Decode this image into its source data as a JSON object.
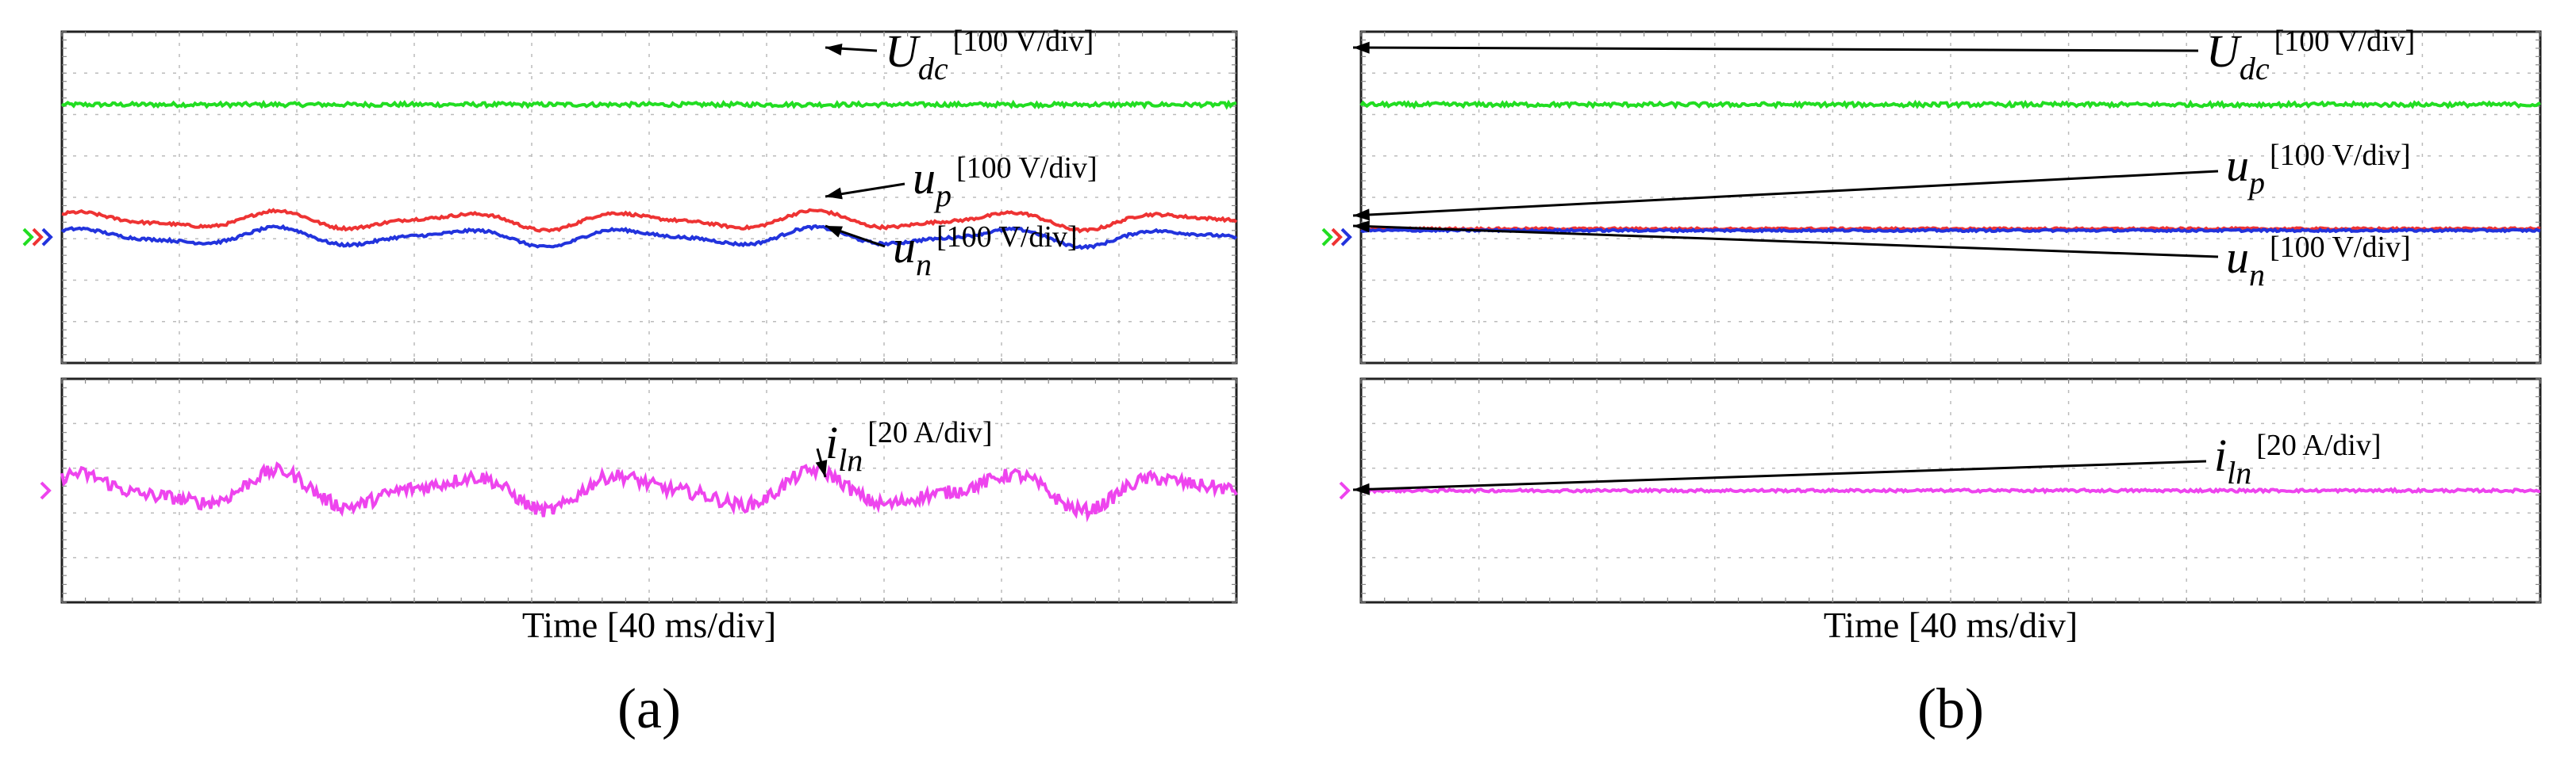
{
  "figure": {
    "panels": [
      {
        "id": "a",
        "label": "(a)",
        "xlabel": "Time [40 ms/div]",
        "top": {
          "traces": [
            {
              "name": "U",
              "sub": "dc",
              "unit": "[100 V/div]",
              "color": "#22dd22",
              "level": 0.78,
              "amplitude": 0.0,
              "ripple": 0.006
            },
            {
              "name": "u",
              "sub": "p",
              "unit": "[100 V/div]",
              "color": "#ee3333",
              "level": 0.43,
              "amplitude": 0.03,
              "ripple": 0.004
            },
            {
              "name": "u",
              "sub": "n",
              "unit": "[100 V/div]",
              "color": "#2233dd",
              "level": 0.38,
              "amplitude": 0.03,
              "ripple": 0.004
            }
          ]
        },
        "bottom": {
          "traces": [
            {
              "name": "i",
              "sub": "ln",
              "unit": "[20 A/div]",
              "color": "#ee44ee",
              "level": 0.5,
              "amplitude": 0.09,
              "ripple": 0.03
            }
          ]
        }
      },
      {
        "id": "b",
        "label": "(b)",
        "xlabel": "Time [40 ms/div]",
        "top": {
          "traces": [
            {
              "name": "U",
              "sub": "dc",
              "unit": "[100 V/div]",
              "color": "#22dd22",
              "level": 0.78,
              "amplitude": 0.0,
              "ripple": 0.006
            },
            {
              "name": "u",
              "sub": "p",
              "unit": "[100 V/div]",
              "color": "#ee3333",
              "level": 0.405,
              "amplitude": 0.0,
              "ripple": 0.003
            },
            {
              "name": "u",
              "sub": "n",
              "unit": "[100 V/div]",
              "color": "#2233dd",
              "level": 0.4,
              "amplitude": 0.0,
              "ripple": 0.003
            }
          ]
        },
        "bottom": {
          "traces": [
            {
              "name": "i",
              "sub": "ln",
              "unit": "[20 A/div]",
              "color": "#ee44ee",
              "level": 0.5,
              "amplitude": 0.0,
              "ripple": 0.006
            }
          ]
        }
      }
    ]
  },
  "chart_data": [
    {
      "type": "line",
      "title": "",
      "panel": "(a)",
      "xlabel": "Time [40 ms/div]",
      "grid": true,
      "series": [
        {
          "name": "Udc",
          "unit": "[100 V/div]",
          "behavior": "constant"
        },
        {
          "name": "up",
          "unit": "[100 V/div]",
          "behavior": "small low-frequency fluctuation"
        },
        {
          "name": "un",
          "unit": "[100 V/div]",
          "behavior": "small low-frequency fluctuation"
        },
        {
          "name": "iln",
          "unit": "[20 A/div]",
          "behavior": "oscillating"
        }
      ]
    },
    {
      "type": "line",
      "title": "",
      "panel": "(b)",
      "xlabel": "Time [40 ms/div]",
      "grid": true,
      "series": [
        {
          "name": "Udc",
          "unit": "[100 V/div]",
          "behavior": "constant"
        },
        {
          "name": "up",
          "unit": "[100 V/div]",
          "behavior": "constant, overlapping un"
        },
        {
          "name": "un",
          "unit": "[100 V/div]",
          "behavior": "constant, overlapping up"
        },
        {
          "name": "iln",
          "unit": "[20 A/div]",
          "behavior": "constant"
        }
      ]
    }
  ]
}
